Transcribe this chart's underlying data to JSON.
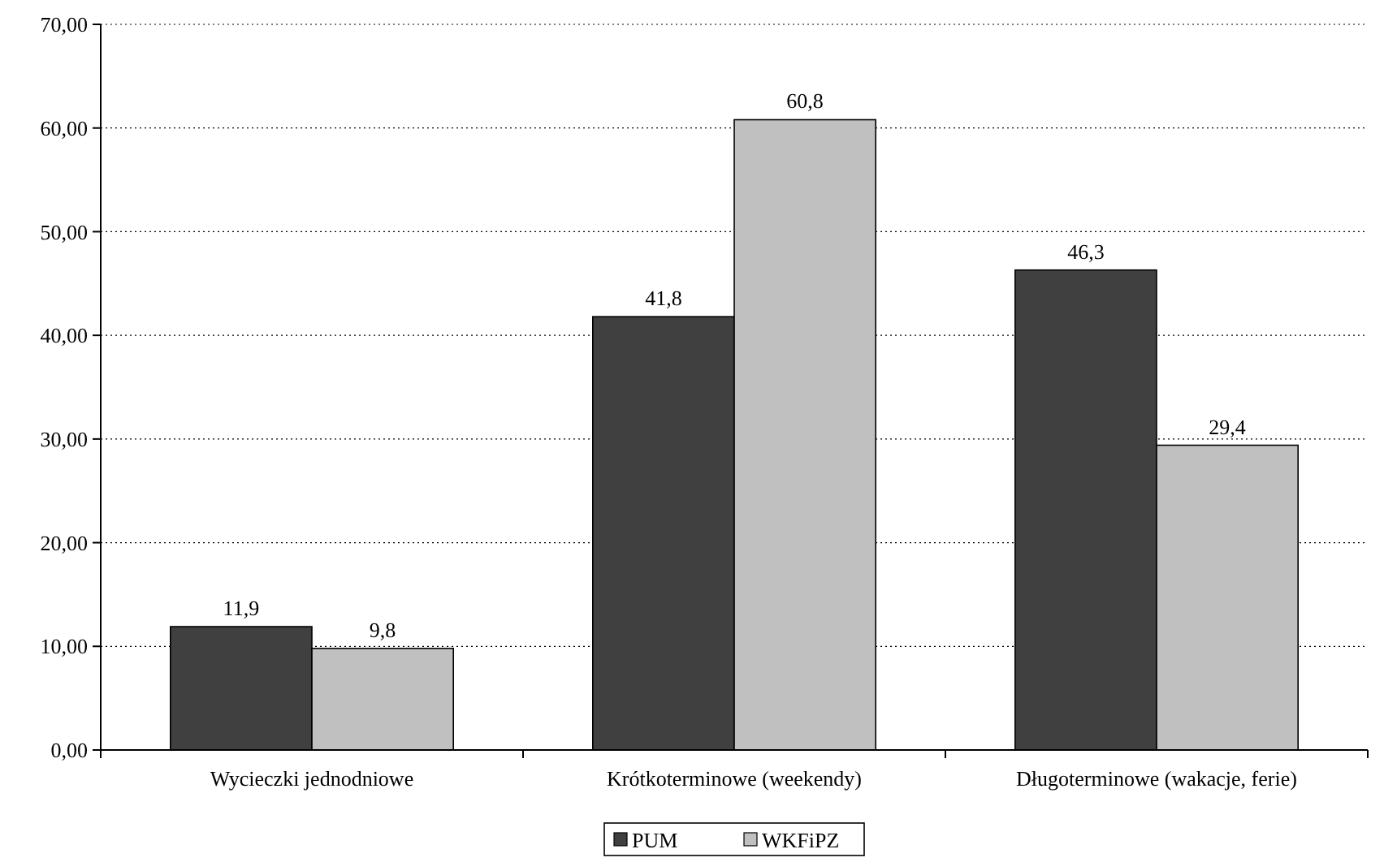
{
  "chart_data": {
    "type": "bar",
    "categories": [
      "Wycieczki jednodniowe",
      "Krótkoterminowe (weekendy)",
      "Długoterminowe (wakacje, ferie)"
    ],
    "series": [
      {
        "name": "PUM",
        "color": "#404040",
        "values": [
          11.9,
          41.8,
          46.3
        ],
        "value_labels": [
          "11,9",
          "41,8",
          "46,3"
        ]
      },
      {
        "name": "WKFiPZ",
        "color": "#c0c0c0",
        "values": [
          9.8,
          60.8,
          29.4
        ],
        "value_labels": [
          "9,8",
          "60,8",
          "29,4"
        ]
      }
    ],
    "ylim": [
      0,
      70
    ],
    "yticks": [
      {
        "value": 0,
        "label": "0,00"
      },
      {
        "value": 10,
        "label": "10,00"
      },
      {
        "value": 20,
        "label": "20,00"
      },
      {
        "value": 30,
        "label": "30,00"
      },
      {
        "value": 40,
        "label": "40,00"
      },
      {
        "value": 50,
        "label": "50,00"
      },
      {
        "value": 60,
        "label": "60,00"
      },
      {
        "value": 70,
        "label": "70,00"
      }
    ],
    "grid": "y",
    "legend": "bottom"
  }
}
